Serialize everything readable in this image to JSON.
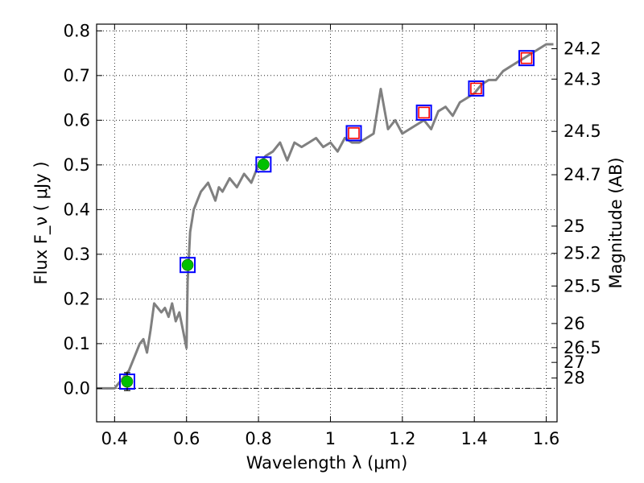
{
  "chart_data": {
    "type": "scatter",
    "xlabel": "Wavelength  λ (μm)",
    "ylabel": "Flux  F_ν  ( μJy )",
    "ylabel_right": "Magnitude (AB)",
    "xlim": [
      0.35,
      1.63
    ],
    "ylim": [
      -0.075,
      0.815
    ],
    "x_ticks": [
      0.4,
      0.6,
      0.8,
      1.0,
      1.2,
      1.4,
      1.6
    ],
    "x_tick_labels": [
      "0.4",
      "0.6",
      "0.8",
      "1",
      "1.2",
      "1.4",
      "1.6"
    ],
    "y_ticks": [
      0.0,
      0.1,
      0.2,
      0.3,
      0.4,
      0.5,
      0.6,
      0.7,
      0.8
    ],
    "y_tick_labels": [
      "0.0",
      "0.1",
      "0.2",
      "0.3",
      "0.4",
      "0.5",
      "0.6",
      "0.7",
      "0.8"
    ],
    "mag_ticks": [
      {
        "label": "24.2",
        "flux": 0.76
      },
      {
        "label": "24.3",
        "flux": 0.692
      },
      {
        "label": "24.5",
        "flux": 0.575
      },
      {
        "label": "24.7",
        "flux": 0.478
      },
      {
        "label": "25",
        "flux": 0.363
      },
      {
        "label": "25.2",
        "flux": 0.302
      },
      {
        "label": "25.5",
        "flux": 0.229
      },
      {
        "label": "26",
        "flux": 0.145
      },
      {
        "label": "26.5",
        "flux": 0.091
      },
      {
        "label": "27",
        "flux": 0.058
      },
      {
        "label": "28",
        "flux": 0.023
      }
    ],
    "grid": true,
    "zero_line": true,
    "sed_curve": {
      "color": "#808080",
      "x": [
        0.35,
        0.4,
        0.42,
        0.44,
        0.46,
        0.47,
        0.48,
        0.49,
        0.5,
        0.51,
        0.52,
        0.53,
        0.54,
        0.55,
        0.56,
        0.57,
        0.58,
        0.59,
        0.6,
        0.603,
        0.61,
        0.62,
        0.63,
        0.64,
        0.65,
        0.66,
        0.67,
        0.68,
        0.69,
        0.7,
        0.72,
        0.74,
        0.76,
        0.78,
        0.8,
        0.82,
        0.84,
        0.86,
        0.88,
        0.9,
        0.92,
        0.94,
        0.96,
        0.98,
        1.0,
        1.02,
        1.04,
        1.06,
        1.08,
        1.1,
        1.12,
        1.14,
        1.16,
        1.18,
        1.2,
        1.22,
        1.24,
        1.26,
        1.28,
        1.3,
        1.32,
        1.34,
        1.36,
        1.38,
        1.4,
        1.42,
        1.44,
        1.46,
        1.48,
        1.5,
        1.52,
        1.54,
        1.56,
        1.58,
        1.6,
        1.62
      ],
      "y": [
        0.0,
        0.0,
        0.02,
        0.04,
        0.08,
        0.1,
        0.11,
        0.08,
        0.13,
        0.19,
        0.18,
        0.17,
        0.18,
        0.16,
        0.19,
        0.15,
        0.17,
        0.13,
        0.09,
        0.24,
        0.35,
        0.4,
        0.42,
        0.44,
        0.45,
        0.46,
        0.44,
        0.42,
        0.45,
        0.44,
        0.47,
        0.45,
        0.48,
        0.46,
        0.5,
        0.52,
        0.53,
        0.55,
        0.51,
        0.55,
        0.54,
        0.55,
        0.56,
        0.54,
        0.55,
        0.53,
        0.56,
        0.55,
        0.55,
        0.56,
        0.57,
        0.67,
        0.58,
        0.6,
        0.57,
        0.58,
        0.59,
        0.6,
        0.58,
        0.62,
        0.63,
        0.61,
        0.64,
        0.65,
        0.66,
        0.68,
        0.69,
        0.69,
        0.71,
        0.72,
        0.73,
        0.74,
        0.75,
        0.76,
        0.77,
        0.77
      ]
    },
    "points": {
      "x": [
        0.435,
        0.603,
        0.814,
        1.065,
        1.26,
        1.405,
        1.545
      ],
      "y": [
        0.015,
        0.276,
        0.501,
        0.571,
        0.617,
        0.671,
        0.739
      ],
      "yerr": [
        0.02,
        0.0,
        0.0,
        0.0,
        0.0,
        0.0,
        0.0
      ],
      "marker": [
        "circle",
        "circle",
        "circle",
        "open-square",
        "open-square",
        "open-square",
        "open-square"
      ],
      "colors": {
        "circle": "#00c000",
        "open_square": "#ff0000",
        "model_box": "#0000ff"
      }
    }
  }
}
